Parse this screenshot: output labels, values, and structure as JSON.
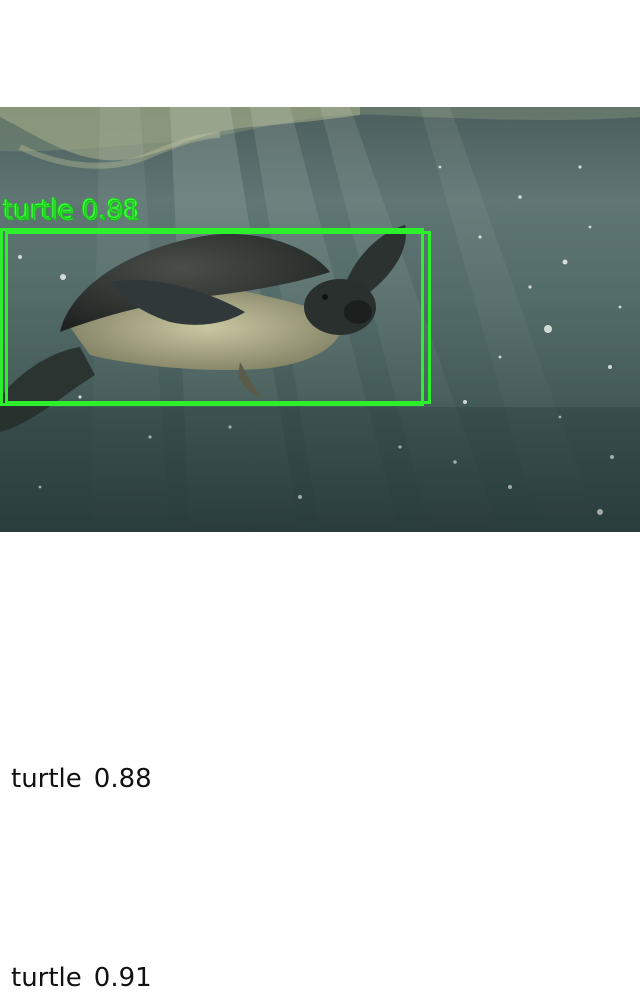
{
  "detections": [
    {
      "label": "turtle",
      "score": "0.88",
      "box_color": "#2bf02b"
    },
    {
      "label": "turtle",
      "score": "0.91",
      "box_color": "#2bf02b"
    }
  ],
  "overlay_labels": {
    "first": "turtle 0.88",
    "second": "turtle 0.91"
  },
  "photo": {
    "subject": "sea-turtle",
    "scene": "underwater"
  },
  "colors": {
    "background": "#ffffff",
    "box": "#2bf02b",
    "caption_text": "#111111"
  }
}
